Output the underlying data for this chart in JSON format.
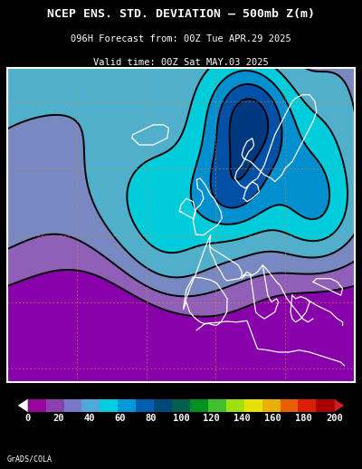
{
  "title_line1": "NCEP ENS. STD. DEVIATION – 500mb Z(m)",
  "title_line2": "096H Forecast from: 00Z Tue APR.29 2025",
  "title_line3": "Valid time: 00Z Sat MAY.03 2025",
  "credit": "GrADS/COLA",
  "colorbar_values": [
    0,
    20,
    40,
    60,
    80,
    100,
    120,
    140,
    160,
    180,
    200
  ],
  "colorbar_colors": [
    "#9b009b",
    "#8b40b0",
    "#7878c8",
    "#50a8d8",
    "#00cce0",
    "#0098d8",
    "#0060b0",
    "#004878",
    "#006050",
    "#009020",
    "#40c030",
    "#a0e010",
    "#e8e000",
    "#e8b000",
    "#e86000",
    "#d82000",
    "#a80000"
  ],
  "bg_color": "#000000",
  "title_color": "#ffffff",
  "map_border_color": "#ffffff",
  "contour_line_color": "#000000",
  "grid_color": "#cc8844",
  "coast_color": "#ffffff",
  "fill_levels": [
    0,
    20,
    40,
    60,
    80,
    100,
    120,
    140,
    160,
    200
  ],
  "fill_colors": [
    "#8800aa",
    "#9060b8",
    "#7888c0",
    "#50b0cc",
    "#00ccdc",
    "#0090d0",
    "#0050a8",
    "#003880",
    "#002060"
  ]
}
